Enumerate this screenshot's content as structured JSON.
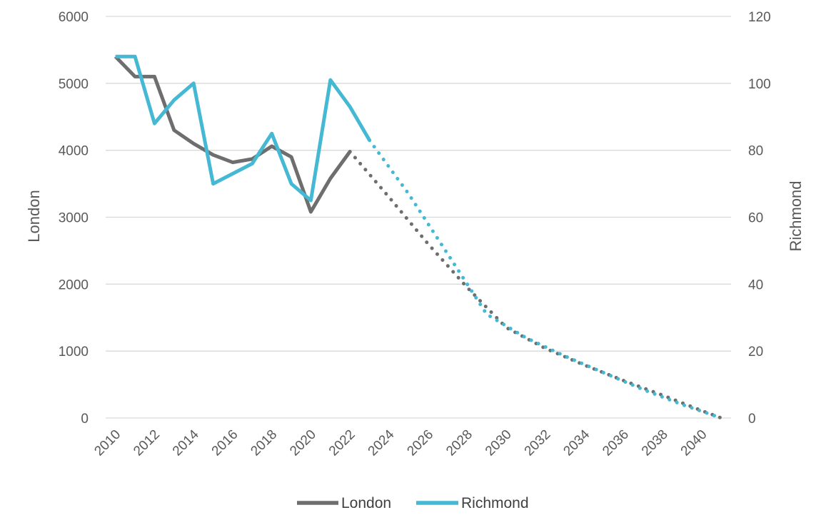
{
  "chart_data": {
    "type": "line",
    "title": "",
    "x": [
      2010,
      2011,
      2012,
      2013,
      2014,
      2015,
      2016,
      2017,
      2018,
      2019,
      2020,
      2021,
      2022,
      2023,
      2024,
      2025,
      2026,
      2027,
      2028,
      2029,
      2030,
      2031,
      2032,
      2033,
      2034,
      2035,
      2036,
      2037,
      2038,
      2039,
      2040,
      2041
    ],
    "x_tick_labels": [
      "2010",
      "2012",
      "2014",
      "2016",
      "2018",
      "2020",
      "2022",
      "2024",
      "2026",
      "2028",
      "2030",
      "2032",
      "2034",
      "2036",
      "2038",
      "2040"
    ],
    "y_left": {
      "label": "London",
      "range": [
        0,
        6000
      ],
      "ticks": [
        "0",
        "1000",
        "2000",
        "3000",
        "4000",
        "5000",
        "6000"
      ]
    },
    "y_right": {
      "label": "Richmond",
      "range": [
        0,
        120
      ],
      "ticks": [
        "0",
        "20",
        "40",
        "60",
        "80",
        "100",
        "120"
      ]
    },
    "grid": true,
    "legend_position": "bottom",
    "series": [
      {
        "name": "London",
        "axis": "left",
        "color": "#6e6e6e",
        "actual": {
          "x": [
            2010,
            2011,
            2012,
            2013,
            2014,
            2015,
            2016,
            2017,
            2018,
            2019,
            2020,
            2021,
            2022
          ],
          "values": [
            5400,
            5100,
            5100,
            4300,
            4100,
            3930,
            3820,
            3870,
            4060,
            3900,
            3080,
            3580,
            3980
          ]
        },
        "projected": {
          "x": [
            2022,
            2024,
            2026,
            2028,
            2030,
            2032,
            2034,
            2036,
            2038,
            2040,
            2041
          ],
          "values": [
            3980,
            3300,
            2600,
            1950,
            1350,
            1040,
            790,
            560,
            340,
            110,
            0
          ]
        }
      },
      {
        "name": "Richmond",
        "axis": "right",
        "color": "#45b8d4",
        "actual": {
          "x": [
            2010,
            2011,
            2012,
            2013,
            2014,
            2015,
            2016,
            2017,
            2018,
            2019,
            2020,
            2021,
            2022,
            2023
          ],
          "values": [
            108,
            108,
            88,
            95,
            100,
            70,
            73,
            76,
            85,
            70,
            65,
            101,
            93,
            83
          ]
        },
        "projected": {
          "x": [
            2023,
            2025,
            2027,
            2029,
            2031,
            2033,
            2035,
            2037,
            2039,
            2041
          ],
          "values": [
            83,
            67,
            49,
            31,
            24,
            18.5,
            13.5,
            8.5,
            4,
            0
          ]
        }
      }
    ]
  }
}
